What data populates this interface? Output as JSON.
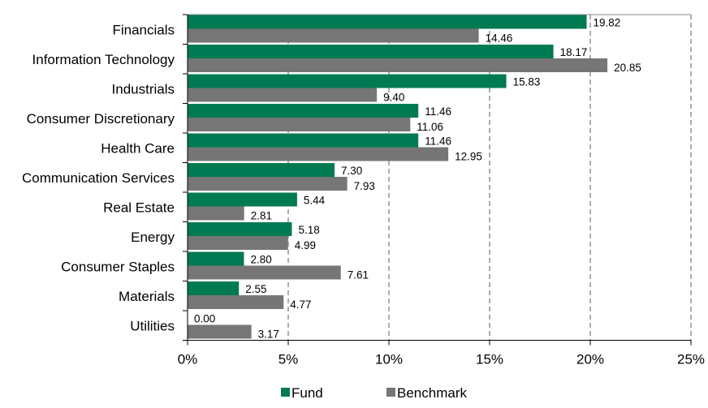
{
  "chart_data": {
    "type": "bar",
    "orientation": "horizontal",
    "categories": [
      "Financials",
      "Information Technology",
      "Industrials",
      "Consumer Discretionary",
      "Health Care",
      "Communication Services",
      "Real Estate",
      "Energy",
      "Consumer Staples",
      "Materials",
      "Utilities"
    ],
    "series": [
      {
        "name": "Fund",
        "color": "#007A53",
        "values": [
          19.82,
          18.17,
          15.83,
          11.46,
          11.46,
          7.3,
          5.44,
          5.18,
          2.8,
          2.55,
          0.0
        ],
        "labels": [
          "19.82",
          "18.17",
          "15.83",
          "11.46",
          "11.46",
          "7.30",
          "5.44",
          "5.18",
          "2.80",
          "2.55",
          "0.00"
        ]
      },
      {
        "name": "Benchmark",
        "color": "#767676",
        "values": [
          14.46,
          20.85,
          9.4,
          11.06,
          12.95,
          7.93,
          2.81,
          4.99,
          7.61,
          4.77,
          3.17
        ],
        "labels": [
          "14.46",
          "20.85",
          "9.40",
          "11.06",
          "12.95",
          "7.93",
          "2.81",
          "4.99",
          "7.61",
          "4.77",
          "3.17"
        ]
      }
    ],
    "xlim": [
      0,
      25
    ],
    "xticks": [
      0,
      5,
      10,
      15,
      20,
      25
    ],
    "xtick_labels": [
      "0%",
      "5%",
      "10%",
      "15%",
      "20%",
      "25%"
    ],
    "grid": "vertical dashed",
    "gridline_color": "#999999",
    "legend_position": "bottom",
    "title": "",
    "xlabel": "",
    "ylabel": ""
  }
}
